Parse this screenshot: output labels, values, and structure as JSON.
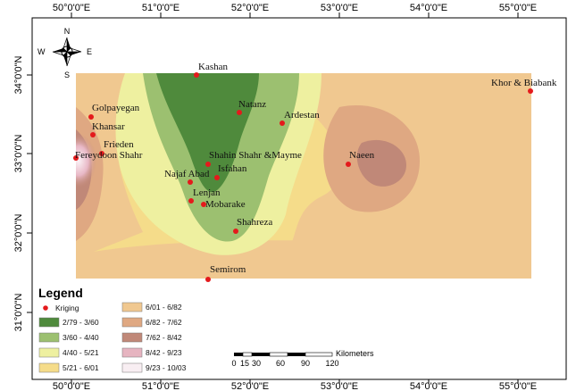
{
  "map": {
    "top_ticks": [
      "50°0'0\"E",
      "51°0'0\"E",
      "52°0'0\"E",
      "53°0'0\"E",
      "54°0'0\"E",
      "55°0'0\"E"
    ],
    "bottom_ticks": [
      "50°0'0\"E",
      "51°0'0\"E",
      "52°0'0\"E",
      "53°0'0\"E",
      "54°0'0\"E",
      "55°0'0\"E"
    ],
    "left_ticks": [
      "34°0'0\"N",
      "33°0'0\"N",
      "32°0'0\"N",
      "31°0'0\"N"
    ],
    "compass": {
      "n": "N",
      "s": "S",
      "e": "E",
      "w": "W"
    }
  },
  "places": [
    {
      "name": "Kashan"
    },
    {
      "name": "Golpayegan"
    },
    {
      "name": "Khansar"
    },
    {
      "name": "Frieden"
    },
    {
      "name": "Fereydoon Shahr"
    },
    {
      "name": "Natanz"
    },
    {
      "name": "Ardestan"
    },
    {
      "name": "Shahin Shahr &Mayme"
    },
    {
      "name": "Isfahan"
    },
    {
      "name": "Najaf Abad"
    },
    {
      "name": "Lenjan"
    },
    {
      "name": "Mobarake"
    },
    {
      "name": "Shahreza"
    },
    {
      "name": "Naeen"
    },
    {
      "name": "Khor & Biabank"
    },
    {
      "name": "Semirom"
    }
  ],
  "legend": {
    "title": "Legend",
    "point_label": "Kriging",
    "point_color": "#e41a1c",
    "classes": [
      {
        "label": "2/79 - 3/60",
        "color": "#4f8a3c"
      },
      {
        "label": "3/60 - 4/40",
        "color": "#9cc070"
      },
      {
        "label": "4/40 - 5/21",
        "color": "#eef0a0"
      },
      {
        "label": "5/21 - 6/01",
        "color": "#f5dc8a"
      },
      {
        "label": "6/01 - 6/82",
        "color": "#f0c890"
      },
      {
        "label": "6/82 - 7/62",
        "color": "#dfa882"
      },
      {
        "label": "7/62 - 8/42",
        "color": "#c08878"
      },
      {
        "label": "8/42 - 9/23",
        "color": "#e6b4c0"
      },
      {
        "label": "9/23 - 10/03",
        "color": "#f8eef2"
      }
    ]
  },
  "scale_bar": {
    "unit": "Kilometers",
    "labels": [
      "0",
      "15",
      "30",
      "60",
      "90",
      "120"
    ]
  }
}
